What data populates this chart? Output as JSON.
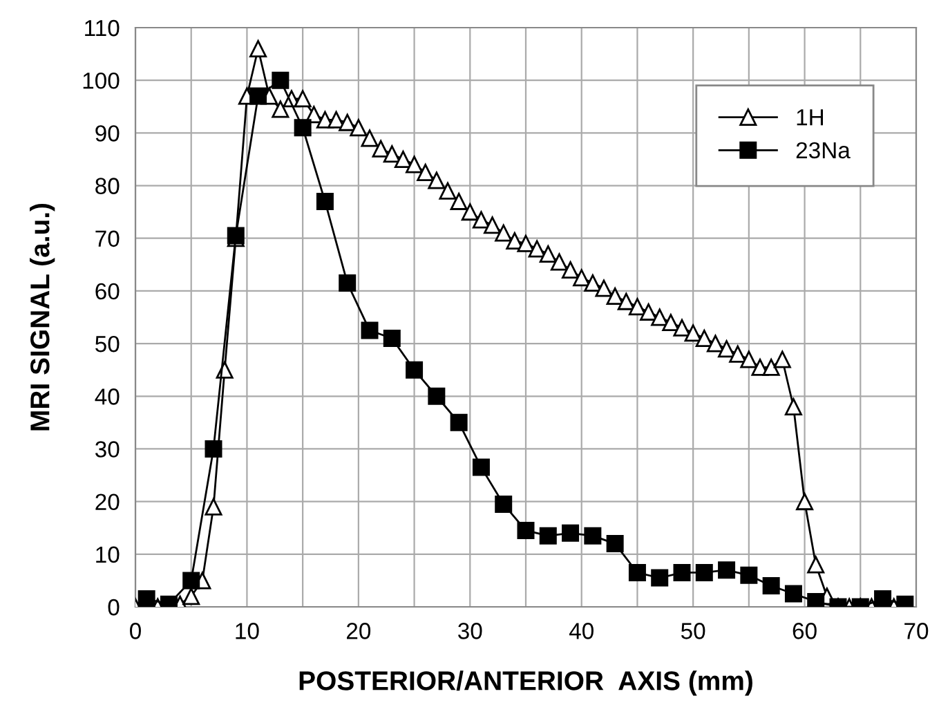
{
  "chart_data": {
    "type": "line",
    "xlabel": "POSTERIOR/ANTERIOR  AXIS (mm)",
    "ylabel": "MRI SIGNAL (a.u.)",
    "series": [
      {
        "name": "1H",
        "color": "#000000",
        "marker": "triangle",
        "x": [
          0,
          2,
          4,
          5,
          6,
          7,
          8,
          9,
          10,
          11,
          12,
          13,
          14,
          15,
          16,
          17,
          18,
          19,
          20,
          21,
          22,
          23,
          24,
          25,
          26,
          27,
          28,
          29,
          30,
          31,
          32,
          33,
          34,
          35,
          36,
          37,
          38,
          39,
          40,
          41,
          42,
          43,
          44,
          45,
          46,
          47,
          48,
          49,
          50,
          51,
          52,
          53,
          54,
          55,
          56,
          57,
          58,
          59,
          60,
          61,
          62,
          63,
          64,
          65,
          66,
          67,
          68,
          69
        ],
        "values": [
          0,
          0,
          0.5,
          2,
          5,
          19,
          45,
          70,
          97,
          106,
          97,
          94.5,
          96.5,
          96.5,
          93.5,
          92.5,
          92.5,
          92,
          91,
          89,
          87,
          86,
          85,
          84,
          82.5,
          81,
          79,
          77,
          75,
          73.5,
          72.5,
          71,
          69.5,
          69,
          68,
          67,
          65.5,
          64,
          62.5,
          61.5,
          60.5,
          59,
          58,
          57,
          56,
          55,
          54,
          53,
          52,
          51,
          50,
          49,
          48,
          47,
          45.5,
          45.5,
          47,
          38,
          20,
          8,
          2,
          0,
          0,
          0,
          0,
          0,
          0,
          0
        ]
      },
      {
        "name": "23Na",
        "color": "#000000",
        "marker": "square",
        "x": [
          1,
          3,
          5,
          7,
          9,
          11,
          13,
          15,
          17,
          19,
          21,
          23,
          25,
          27,
          29,
          31,
          33,
          35,
          37,
          39,
          41,
          43,
          45,
          47,
          49,
          51,
          53,
          55,
          57,
          59,
          61,
          63,
          65,
          67,
          69
        ],
        "values": [
          1.5,
          0.5,
          5,
          30,
          70.5,
          97,
          100,
          91,
          77,
          61.5,
          52.5,
          51,
          45,
          40,
          35,
          26.5,
          19.5,
          14.5,
          13.5,
          14,
          13.5,
          12,
          6.5,
          5.5,
          6.5,
          6.5,
          7,
          6,
          4,
          2.5,
          1,
          0,
          0,
          1.5,
          0.5
        ]
      }
    ],
    "xlim": [
      0,
      70
    ],
    "ylim": [
      0,
      110
    ],
    "xticks": [
      0,
      {
        "value": 5,
        "label": null
      },
      10,
      {
        "value": 15,
        "label": null
      },
      20,
      {
        "value": 25,
        "label": null
      },
      30,
      {
        "value": 35,
        "label": null
      },
      40,
      {
        "value": 45,
        "label": null
      },
      50,
      {
        "value": 55,
        "label": null
      },
      60,
      {
        "value": 65,
        "label": null
      },
      70
    ],
    "yticks": [
      0,
      10,
      20,
      30,
      40,
      50,
      60,
      70,
      80,
      90,
      100,
      110
    ],
    "grid": true,
    "legend": "top right",
    "line_style": "solid"
  }
}
